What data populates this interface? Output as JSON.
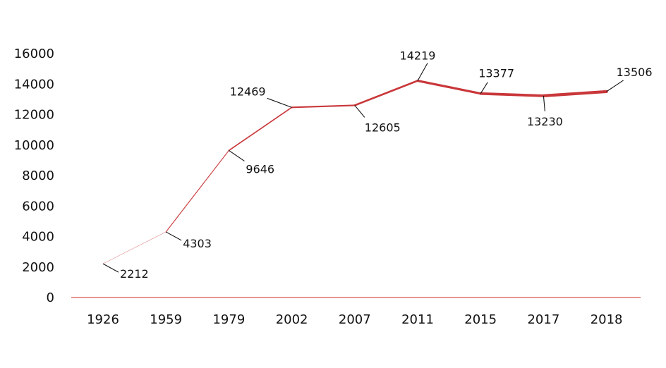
{
  "chart_data": {
    "type": "line",
    "title": "",
    "xlabel": "",
    "ylabel": "",
    "categories": [
      "1926",
      "1959",
      "1979",
      "2002",
      "2007",
      "2011",
      "2015",
      "2017",
      "2018"
    ],
    "series": [
      {
        "values": [
          2212,
          4303,
          9646,
          12469,
          12605,
          14219,
          13377,
          13230,
          13506
        ],
        "color": "#c9373a"
      }
    ],
    "data_labels": [
      "2212",
      "4303",
      "9646",
      "12469",
      "12605",
      "14219",
      "13377",
      "13230",
      "13506"
    ],
    "y_ticks": [
      "0",
      "2000",
      "4000",
      "6000",
      "8000",
      "10000",
      "12000",
      "14000",
      "16000"
    ],
    "ylim": [
      0,
      16000
    ],
    "grid": false,
    "legend": "none",
    "baseline_color": "#d9534f"
  }
}
